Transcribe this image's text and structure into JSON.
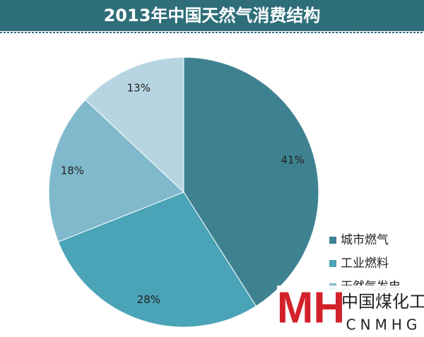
{
  "chart_data": {
    "type": "pie",
    "title": "2013年中国天然气消费结构",
    "categories": [
      "城市燃气",
      "工业燃料",
      "天然气发电",
      null
    ],
    "values": [
      41,
      28,
      18,
      13
    ],
    "value_labels": [
      "41%",
      "28%",
      "18%",
      "13%"
    ],
    "colors": [
      "#3e8291",
      "#4aa3b6",
      "#80b9cc",
      "#b6d5e1"
    ],
    "watermark": {
      "logo": "MH",
      "name": "中国煤化工",
      "code": "CNMHG"
    }
  }
}
